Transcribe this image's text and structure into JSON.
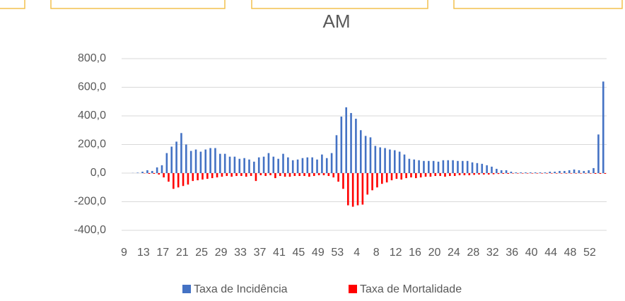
{
  "chart_data": {
    "type": "bar",
    "title": "AM",
    "categories": [
      "9",
      null,
      null,
      null,
      "13",
      null,
      null,
      null,
      "17",
      null,
      null,
      null,
      "21",
      null,
      null,
      null,
      "25",
      null,
      null,
      null,
      "29",
      null,
      null,
      null,
      "33",
      null,
      null,
      null,
      "37",
      null,
      null,
      null,
      "41",
      null,
      null,
      null,
      "45",
      null,
      null,
      null,
      "49",
      null,
      null,
      null,
      "53",
      null,
      null,
      null,
      "4",
      null,
      null,
      null,
      "8",
      null,
      null,
      null,
      "12",
      null,
      null,
      null,
      "16",
      null,
      null,
      null,
      "20",
      null,
      null,
      null,
      "24",
      null,
      null,
      null,
      "28",
      null,
      null,
      null,
      "32",
      null,
      null,
      null,
      "36",
      null,
      null,
      null,
      "40",
      null,
      null,
      null,
      "44",
      null,
      null,
      null,
      "48",
      null,
      null,
      null,
      "52",
      null,
      null,
      null
    ],
    "series": [
      {
        "name": "Taxa de Incidência",
        "color": "#4472c4",
        "values": [
          0,
          0,
          1,
          3,
          10,
          20,
          15,
          40,
          55,
          140,
          185,
          220,
          280,
          200,
          155,
          165,
          150,
          165,
          175,
          175,
          135,
          135,
          115,
          115,
          100,
          105,
          95,
          80,
          110,
          115,
          140,
          115,
          100,
          135,
          110,
          90,
          95,
          105,
          110,
          110,
          95,
          130,
          105,
          140,
          265,
          395,
          460,
          420,
          380,
          300,
          260,
          250,
          190,
          180,
          175,
          165,
          160,
          150,
          130,
          100,
          95,
          90,
          85,
          85,
          85,
          80,
          90,
          90,
          90,
          85,
          85,
          85,
          75,
          70,
          65,
          55,
          45,
          30,
          20,
          20,
          10,
          5,
          5,
          5,
          5,
          5,
          5,
          5,
          10,
          10,
          15,
          15,
          20,
          25,
          20,
          15,
          20,
          35,
          270,
          640
        ]
      },
      {
        "name": "Taxa de Mortalidade",
        "color": "#ff0000",
        "values": [
          0,
          0,
          0,
          0,
          -2,
          -5,
          -5,
          -10,
          -30,
          -60,
          -110,
          -100,
          -90,
          -80,
          -55,
          -50,
          -45,
          -40,
          -35,
          -30,
          -25,
          -20,
          -25,
          -20,
          -20,
          -25,
          -20,
          -55,
          -15,
          -20,
          -15,
          -35,
          -20,
          -25,
          -25,
          -20,
          -20,
          -20,
          -25,
          -20,
          -15,
          -15,
          -20,
          -30,
          -60,
          -110,
          -225,
          -235,
          -225,
          -220,
          -150,
          -120,
          -100,
          -75,
          -65,
          -50,
          -40,
          -45,
          -35,
          -30,
          -35,
          -30,
          -25,
          -25,
          -20,
          -20,
          -25,
          -20,
          -20,
          -15,
          -15,
          -15,
          -12,
          -10,
          -10,
          -10,
          -8,
          -6,
          -5,
          -5,
          -3,
          -3,
          -3,
          -3,
          -3,
          -3,
          -3,
          -3,
          -3,
          -3,
          -3,
          -3,
          -3,
          -3,
          -3,
          -3,
          -3,
          -5,
          -5,
          -5
        ]
      }
    ],
    "ylim": [
      -400,
      800
    ],
    "yticks": [
      {
        "value": -400,
        "label": "-400,0"
      },
      {
        "value": -200,
        "label": "-200,0"
      },
      {
        "value": 0,
        "label": "0,0"
      },
      {
        "value": 200,
        "label": "200,0"
      },
      {
        "value": 400,
        "label": "400,0"
      },
      {
        "value": 600,
        "label": "600,0"
      },
      {
        "value": 800,
        "label": "800,0"
      }
    ],
    "grid": true,
    "legend": "bottom"
  }
}
